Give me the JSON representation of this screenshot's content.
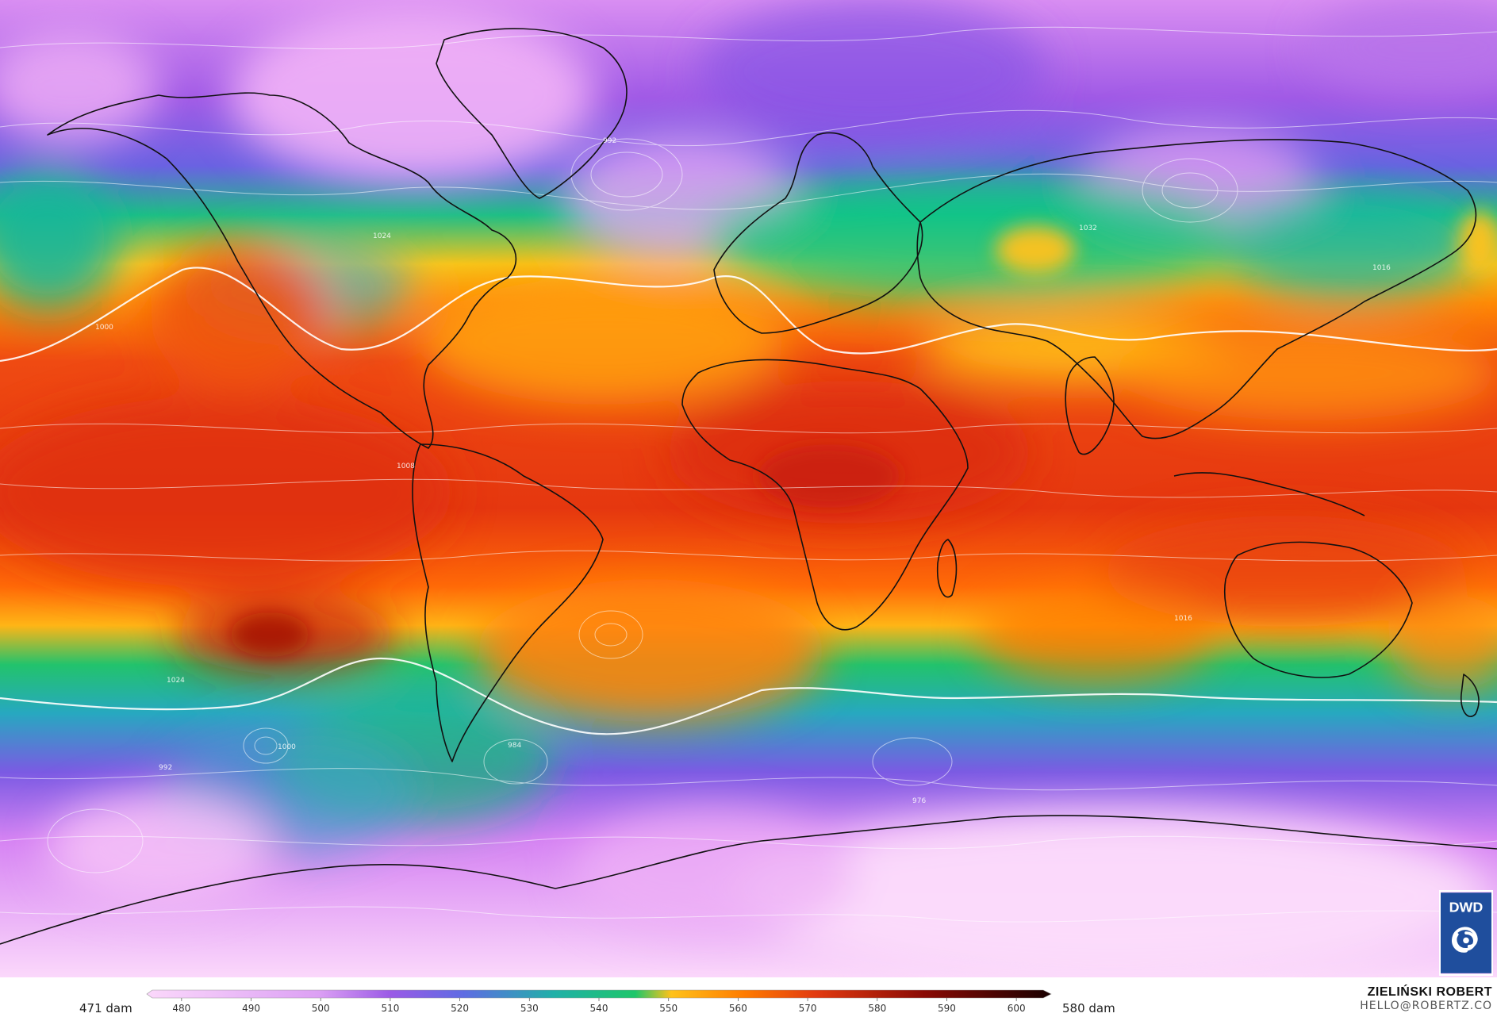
{
  "colorbar": {
    "min_label": "471 dam",
    "max_label": "580 dam",
    "ticks": [
      "480",
      "490",
      "500",
      "510",
      "520",
      "530",
      "540",
      "550",
      "560",
      "570",
      "580",
      "590",
      "600"
    ],
    "range": [
      475,
      605
    ]
  },
  "credit": {
    "name": "ZIELIŃSKI ROBERT",
    "email": "HELLO@ROBERTZ.CO"
  },
  "logo": {
    "text": "DWD",
    "icon": "swirl-icon",
    "colors": {
      "background": "#1f4e9d",
      "symbol": "#ffffff"
    }
  },
  "isobar_labels": [
    "1024",
    "1032",
    "992",
    "1000",
    "1016",
    "1008",
    "984",
    "976"
  ],
  "palette": {
    "low": "#f3b8f6",
    "violet": "#9a5ae6",
    "blue": "#5f6ce3",
    "teal": "#21b0a8",
    "green": "#1ec66a",
    "yellow": "#ffc21a",
    "orange": "#ff7c00",
    "red": "#e23a10",
    "dark": "#1a0000"
  }
}
